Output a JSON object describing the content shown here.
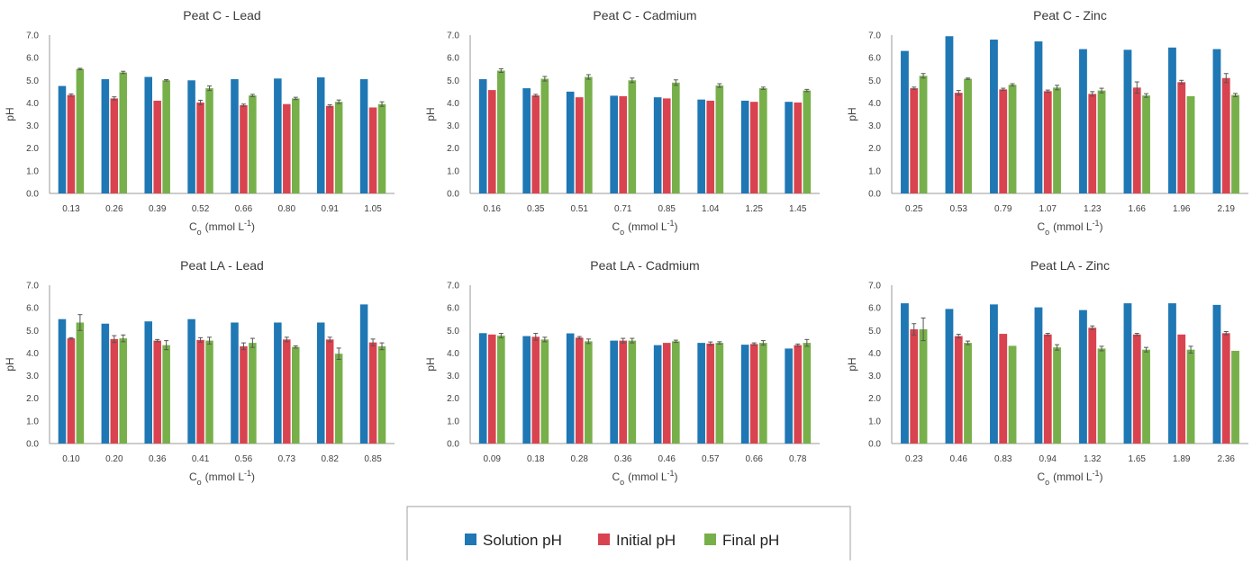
{
  "colors": {
    "solution": "#1f77b4",
    "initial": "#d9434f",
    "final": "#77b04a"
  },
  "legend": {
    "placement": "bottom-center",
    "items": [
      {
        "label": "Solution pH",
        "color": "#1f77b4"
      },
      {
        "label": "Initial pH",
        "color": "#d9434f"
      },
      {
        "label": "Final pH",
        "color": "#77b04a"
      }
    ]
  },
  "chart_data": [
    {
      "type": "bar",
      "title": "Peat C - Lead",
      "xlabel_main": "C",
      "xlabel_sub": "o",
      "xlabel_unit": "(mmol L",
      "xlabel_sup": "-1",
      "xlabel_end": ")",
      "ylabel": "pH",
      "ylim": [
        0,
        7
      ],
      "yticks": [
        "0.0",
        "1.0",
        "2.0",
        "3.0",
        "4.0",
        "5.0",
        "6.0",
        "7.0"
      ],
      "categories": [
        "0.13",
        "0.26",
        "0.39",
        "0.52",
        "0.66",
        "0.80",
        "0.91",
        "1.05"
      ],
      "series": [
        {
          "name": "Solution pH",
          "values": [
            4.75,
            5.05,
            5.15,
            5.0,
            5.05,
            5.08,
            5.13,
            5.05
          ],
          "errors": [
            0,
            0,
            0,
            0,
            0,
            0,
            0,
            0
          ]
        },
        {
          "name": "Initial pH",
          "values": [
            4.35,
            4.2,
            4.1,
            4.02,
            3.9,
            3.95,
            3.87,
            3.8
          ],
          "errors": [
            0.05,
            0.07,
            0,
            0.1,
            0.05,
            0,
            0.05,
            0
          ]
        },
        {
          "name": "Final pH",
          "values": [
            5.5,
            5.35,
            5.0,
            4.65,
            4.33,
            4.2,
            4.05,
            3.95
          ],
          "errors": [
            0.03,
            0.05,
            0.03,
            0.1,
            0.05,
            0.05,
            0.08,
            0.1
          ]
        }
      ]
    },
    {
      "type": "bar",
      "title": "Peat C - Cadmium",
      "xlabel_main": "C",
      "xlabel_sub": "o",
      "xlabel_unit": "(mmol L",
      "xlabel_sup": "-1",
      "xlabel_end": ")",
      "ylabel": "pH",
      "ylim": [
        0,
        7
      ],
      "yticks": [
        "0.0",
        "1.0",
        "2.0",
        "3.0",
        "4.0",
        "5.0",
        "6.0",
        "7.0"
      ],
      "categories": [
        "0.16",
        "0.35",
        "0.51",
        "0.71",
        "0.85",
        "1.04",
        "1.25",
        "1.45"
      ],
      "series": [
        {
          "name": "Solution pH",
          "values": [
            5.05,
            4.65,
            4.5,
            4.32,
            4.25,
            4.15,
            4.1,
            4.05
          ],
          "errors": [
            0,
            0,
            0,
            0,
            0,
            0,
            0,
            0
          ]
        },
        {
          "name": "Initial pH",
          "values": [
            4.57,
            4.33,
            4.25,
            4.3,
            4.2,
            4.1,
            4.05,
            4.02
          ],
          "errors": [
            0,
            0.05,
            0,
            0,
            0,
            0,
            0,
            0
          ]
        },
        {
          "name": "Final pH",
          "values": [
            5.43,
            5.07,
            5.15,
            5.0,
            4.9,
            4.77,
            4.65,
            4.55
          ],
          "errors": [
            0.08,
            0.1,
            0.1,
            0.1,
            0.12,
            0.08,
            0.05,
            0.05
          ]
        }
      ]
    },
    {
      "type": "bar",
      "title": "Peat C - Zinc",
      "xlabel_main": "C",
      "xlabel_sub": "o",
      "xlabel_unit": "(mmol L",
      "xlabel_sup": "-1",
      "xlabel_end": ")",
      "ylabel": "pH",
      "ylim": [
        0,
        7
      ],
      "yticks": [
        "0.0",
        "1.0",
        "2.0",
        "3.0",
        "4.0",
        "5.0",
        "6.0",
        "7.0"
      ],
      "categories": [
        "0.25",
        "0.53",
        "0.79",
        "1.07",
        "1.23",
        "1.66",
        "1.96",
        "2.19"
      ],
      "series": [
        {
          "name": "Solution pH",
          "values": [
            6.3,
            6.95,
            6.8,
            6.72,
            6.38,
            6.35,
            6.45,
            6.38
          ],
          "errors": [
            0,
            0,
            0,
            0,
            0,
            0,
            0,
            0
          ]
        },
        {
          "name": "Initial pH",
          "values": [
            4.65,
            4.45,
            4.6,
            4.52,
            4.4,
            4.68,
            4.92,
            5.1
          ],
          "errors": [
            0.05,
            0.1,
            0.05,
            0.05,
            0.1,
            0.25,
            0.08,
            0.2
          ]
        },
        {
          "name": "Final pH",
          "values": [
            5.2,
            5.07,
            4.8,
            4.68,
            4.55,
            4.33,
            4.3,
            4.35
          ],
          "errors": [
            0.1,
            0.03,
            0.05,
            0.1,
            0.1,
            0.08,
            0,
            0.07
          ]
        }
      ]
    },
    {
      "type": "bar",
      "title": "Peat LA - Lead",
      "xlabel_main": "C",
      "xlabel_sub": "o",
      "xlabel_unit": "(mmol L",
      "xlabel_sup": "-1",
      "xlabel_end": ")",
      "ylabel": "pH",
      "ylim": [
        0,
        7
      ],
      "yticks": [
        "0.0",
        "1.0",
        "2.0",
        "3.0",
        "4.0",
        "5.0",
        "6.0",
        "7.0"
      ],
      "categories": [
        "0.10",
        "0.20",
        "0.36",
        "0.41",
        "0.56",
        "0.73",
        "0.82",
        "0.85"
      ],
      "series": [
        {
          "name": "Solution pH",
          "values": [
            5.5,
            5.3,
            5.4,
            5.5,
            5.35,
            5.35,
            5.35,
            6.15
          ],
          "errors": [
            0,
            0,
            0,
            0,
            0,
            0,
            0,
            0
          ]
        },
        {
          "name": "Initial pH",
          "values": [
            4.65,
            4.62,
            4.55,
            4.58,
            4.3,
            4.6,
            4.6,
            4.47
          ],
          "errors": [
            0.03,
            0.15,
            0.05,
            0.1,
            0.15,
            0.1,
            0.1,
            0.15
          ]
        },
        {
          "name": "Final pH",
          "values": [
            5.35,
            4.65,
            4.35,
            4.55,
            4.45,
            4.27,
            3.97,
            4.3
          ],
          "errors": [
            0.35,
            0.15,
            0.2,
            0.15,
            0.2,
            0.05,
            0.25,
            0.15
          ]
        }
      ]
    },
    {
      "type": "bar",
      "title": "Peat LA - Cadmium",
      "xlabel_main": "C",
      "xlabel_sub": "o",
      "xlabel_unit": "(mmol L",
      "xlabel_sup": "-1",
      "xlabel_end": ")",
      "ylabel": "pH",
      "ylim": [
        0,
        7
      ],
      "yticks": [
        "0.0",
        "1.0",
        "2.0",
        "3.0",
        "4.0",
        "5.0",
        "6.0",
        "7.0"
      ],
      "categories": [
        "0.09",
        "0.18",
        "0.28",
        "0.36",
        "0.46",
        "0.57",
        "0.66",
        "0.78"
      ],
      "series": [
        {
          "name": "Solution pH",
          "values": [
            4.88,
            4.75,
            4.87,
            4.55,
            4.35,
            4.45,
            4.37,
            4.2
          ],
          "errors": [
            0,
            0,
            0,
            0,
            0,
            0,
            0,
            0
          ]
        },
        {
          "name": "Initial pH",
          "values": [
            4.82,
            4.72,
            4.68,
            4.55,
            4.45,
            4.42,
            4.4,
            4.35
          ],
          "errors": [
            0,
            0.15,
            0.05,
            0.1,
            0,
            0.07,
            0.05,
            0.05
          ]
        },
        {
          "name": "Final pH",
          "values": [
            4.77,
            4.6,
            4.52,
            4.55,
            4.52,
            4.45,
            4.45,
            4.45
          ],
          "errors": [
            0.1,
            0.1,
            0.1,
            0.1,
            0.05,
            0.05,
            0.1,
            0.15
          ]
        }
      ]
    },
    {
      "type": "bar",
      "title": "Peat LA - Zinc",
      "xlabel_main": "C",
      "xlabel_sub": "o",
      "xlabel_unit": "(mmol L",
      "xlabel_sup": "-1",
      "xlabel_end": ")",
      "ylabel": "pH",
      "ylim": [
        0,
        7
      ],
      "yticks": [
        "0.0",
        "1.0",
        "2.0",
        "3.0",
        "4.0",
        "5.0",
        "6.0",
        "7.0"
      ],
      "categories": [
        "0.23",
        "0.46",
        "0.83",
        "0.94",
        "1.32",
        "1.65",
        "1.89",
        "2.36"
      ],
      "series": [
        {
          "name": "Solution pH",
          "values": [
            6.2,
            5.95,
            6.15,
            6.02,
            5.9,
            6.2,
            6.2,
            6.13
          ],
          "errors": [
            0,
            0,
            0,
            0,
            0,
            0,
            0,
            0
          ]
        },
        {
          "name": "Initial pH",
          "values": [
            5.05,
            4.75,
            4.85,
            4.82,
            5.12,
            4.82,
            4.82,
            4.88
          ],
          "errors": [
            0.25,
            0.08,
            0,
            0.05,
            0.08,
            0.05,
            0,
            0.07
          ]
        },
        {
          "name": "Final pH",
          "values": [
            5.05,
            4.45,
            4.32,
            4.25,
            4.2,
            4.15,
            4.15,
            4.1
          ],
          "errors": [
            0.5,
            0.08,
            0,
            0.12,
            0.1,
            0.1,
            0.15,
            0
          ]
        }
      ]
    }
  ]
}
